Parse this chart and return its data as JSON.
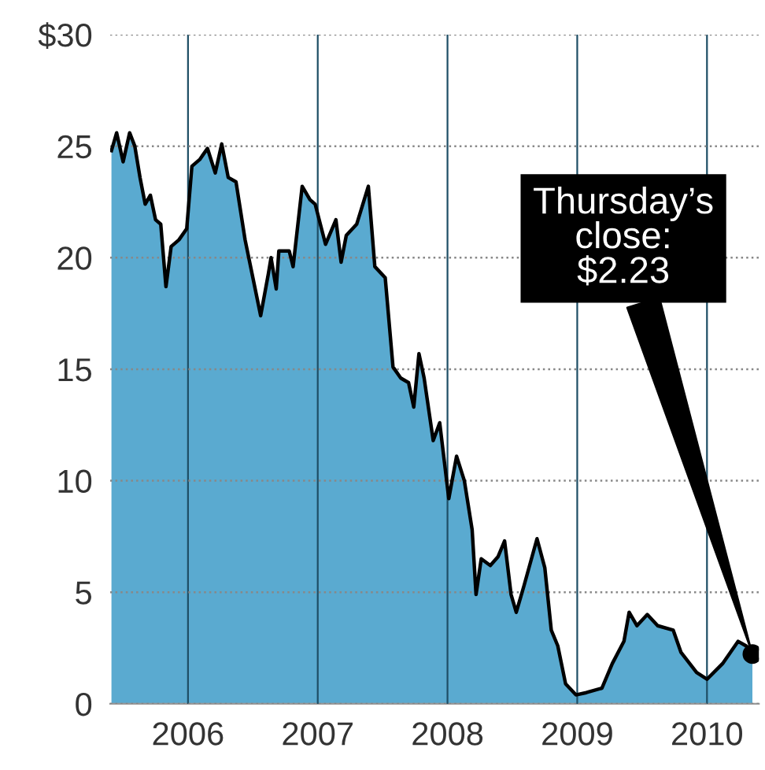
{
  "chart_data": {
    "type": "area",
    "x": [
      2005.41,
      2005.45,
      2005.5,
      2005.55,
      2005.59,
      2005.63,
      2005.67,
      2005.71,
      2005.75,
      2005.79,
      2005.83,
      2005.87,
      2005.93,
      2005.99,
      2006.03,
      2006.09,
      2006.15,
      2006.21,
      2006.26,
      2006.31,
      2006.37,
      2006.44,
      2006.5,
      2006.56,
      2006.62,
      2006.64,
      2006.68,
      2006.7,
      2006.78,
      2006.81,
      2006.88,
      2006.94,
      2006.98,
      2007.06,
      2007.14,
      2007.18,
      2007.22,
      2007.3,
      2007.39,
      2007.44,
      2007.52,
      2007.58,
      2007.64,
      2007.7,
      2007.74,
      2007.78,
      2007.82,
      2007.89,
      2007.94,
      2008.01,
      2008.07,
      2008.13,
      2008.19,
      2008.22,
      2008.26,
      2008.33,
      2008.39,
      2008.44,
      2008.49,
      2008.53,
      2008.59,
      2008.69,
      2008.75,
      2008.8,
      2008.85,
      2008.91,
      2008.99,
      2009.07,
      2009.19,
      2009.27,
      2009.36,
      2009.4,
      2009.46,
      2009.54,
      2009.62,
      2009.74,
      2009.8,
      2009.92,
      2010.0,
      2010.12,
      2010.24,
      2010.3,
      2010.35
    ],
    "series": [
      {
        "color": "#5aaad0",
        "values": [
          24.8,
          25.6,
          24.3,
          25.6,
          25.0,
          23.6,
          22.4,
          22.8,
          21.7,
          21.5,
          18.7,
          20.5,
          20.8,
          21.3,
          24.1,
          24.4,
          24.9,
          23.8,
          25.1,
          23.6,
          23.4,
          20.8,
          19.1,
          17.4,
          19.3,
          20.0,
          18.6,
          20.3,
          20.3,
          19.6,
          23.2,
          22.6,
          22.4,
          20.6,
          21.7,
          19.8,
          21.0,
          21.5,
          23.2,
          19.6,
          19.1,
          15.1,
          14.6,
          14.4,
          13.3,
          15.7,
          14.6,
          11.8,
          12.6,
          9.2,
          11.1,
          10.0,
          7.8,
          4.9,
          6.5,
          6.2,
          6.6,
          7.3,
          4.9,
          4.1,
          5.3,
          7.4,
          6.1,
          3.3,
          2.6,
          0.9,
          0.4,
          0.5,
          0.7,
          1.8,
          2.8,
          4.1,
          3.5,
          4.0,
          3.5,
          3.3,
          2.3,
          1.4,
          1.1,
          1.8,
          2.8,
          2.6,
          2.23
        ]
      }
    ],
    "xlim": [
      2005.4,
      2010.4
    ],
    "xticks": [
      2006,
      2007,
      2008,
      2009,
      2010
    ],
    "ylim": [
      0,
      30
    ],
    "yticks": [
      0,
      5,
      10,
      15,
      20,
      25,
      {
        "value": 30,
        "label": "$30"
      }
    ],
    "grid": true,
    "annotations": [
      {
        "text": "Thursday’s\nclose:\n$2.23",
        "x": 2010.35,
        "y": 2.23
      }
    ]
  }
}
